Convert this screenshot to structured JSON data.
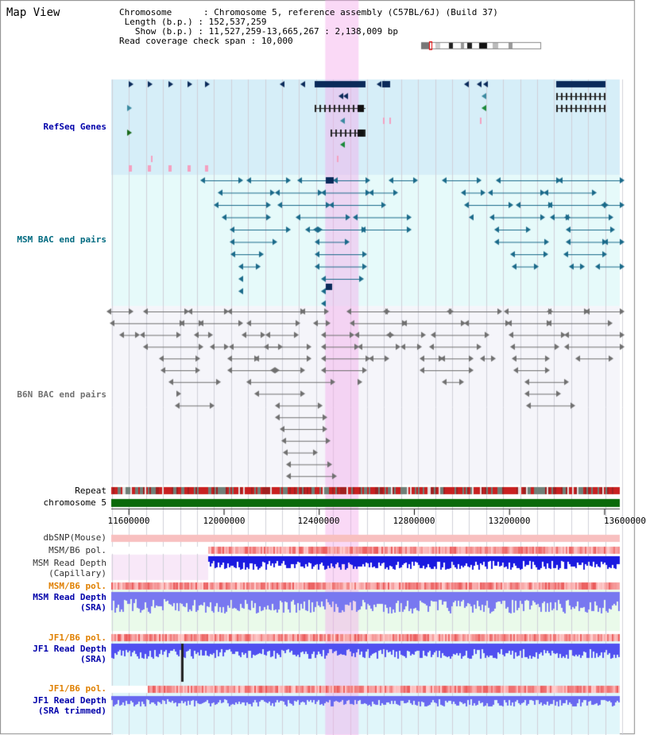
{
  "view_title": "Map View",
  "header": {
    "chromosome_label": "Chromosome",
    "chromosome_value": "Chromosome 5, reference assembly (C57BL/6J) (Build 37)",
    "length_label": "Length (b.p.)",
    "length_value": "152,537,259",
    "show_label": "Show (b.p.)",
    "show_value": "11,527,259-13,665,267 : 2,138,009 bp",
    "coverage_label": "Read coverage check span",
    "coverage_value": "10,000"
  },
  "tracks": {
    "refseq": "RefSeq Genes",
    "msm_bac": "MSM BAC end pairs",
    "b6n_bac": "B6N BAC end pairs",
    "repeat": "Repeat",
    "chromosome": "chromosome 5",
    "dbsnp": "dbSNP(Mouse)",
    "msm_b6_pol": "MSM/B6 pol.",
    "msm_depth_cap_1": "MSM Read Depth",
    "msm_depth_cap_2": "(Capillary)",
    "msm_b6_pol_2": "MSM/B6 pol.",
    "msm_depth_sra_1": "MSM Read Depth",
    "msm_depth_sra_2": "(SRA)",
    "jf1_b6_pol": "JF1/B6 pol.",
    "jf1_depth_sra_1": "JF1 Read Depth",
    "jf1_depth_sra_2": "(SRA)",
    "jf1_b6_pol_2": "JF1/B6 pol.",
    "jf1_depth_trim_1": "JF1 Read Depth",
    "jf1_depth_trim_2": "(SRA trimmed)"
  },
  "axis": {
    "ticks": [
      "11600000",
      "12000000",
      "12400000",
      "12800000",
      "13200000",
      "13600000"
    ],
    "tick_values": [
      11600000,
      12000000,
      12400000,
      12800000,
      13200000,
      13600000
    ],
    "range": [
      11527259,
      13665267
    ]
  },
  "highlight": {
    "start": 12427000,
    "end": 12567000
  },
  "colors": {
    "gene_dark": "#0a2a5a",
    "refseq_bg": "#d6eef8",
    "msm_bg": "#e6fafa",
    "b6n_bg": "#f5f5fa",
    "bac_msm": "#1a6a8a",
    "bac_b6n": "#707070",
    "highlight": "#f5c8ee",
    "chromosome": "#0a6a0a",
    "depth_blue": "#2a2ae8",
    "pol_red": "#f05050",
    "label_blue": "#0000aa",
    "label_teal": "#006a80",
    "label_orange": "#e08000"
  }
}
